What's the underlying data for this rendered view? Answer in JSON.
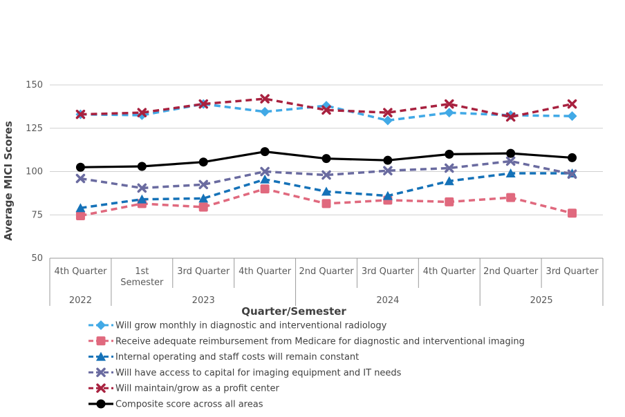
{
  "chart_data": {
    "type": "line",
    "title": "",
    "xlabel": "Quarter/Semester",
    "ylabel": "Average MICI Scores",
    "ylim": [
      50,
      150
    ],
    "yticks": [
      50,
      75,
      100,
      125,
      150
    ],
    "grid": true,
    "legend_position": "bottom",
    "categories": [
      "4th Quarter",
      "1st Semester",
      "3rd Quarter",
      "4th Quarter",
      "2nd Quarter",
      "3rd Quarter",
      "4th Quarter",
      "2nd Quarter",
      "3rd Quarter"
    ],
    "category_lines": [
      [
        "4th Quarter"
      ],
      [
        "1st",
        "Semester"
      ],
      [
        "3rd Quarter"
      ],
      [
        "4th Quarter"
      ],
      [
        "2nd Quarter"
      ],
      [
        "3rd Quarter"
      ],
      [
        "4th Quarter"
      ],
      [
        "2nd Quarter"
      ],
      [
        "3rd Quarter"
      ]
    ],
    "year_groups": [
      {
        "label": "2022",
        "start": 0,
        "end": 0
      },
      {
        "label": "2023",
        "start": 1,
        "end": 3
      },
      {
        "label": "2024",
        "start": 4,
        "end": 6
      },
      {
        "label": "2025",
        "start": 7,
        "end": 8
      }
    ],
    "series": [
      {
        "name": "Will grow monthly in diagnostic and interventional radiology",
        "color": "#41A9E6",
        "marker": "diamond",
        "dash": true,
        "values": [
          133,
          132.5,
          139,
          134.5,
          138,
          129.5,
          134,
          132.5,
          132
        ]
      },
      {
        "name": "Receive adequate reimbursement from Medicare for diagnostic and interventional imaging",
        "color": "#E0697E",
        "marker": "square",
        "dash": true,
        "values": [
          74.5,
          81.5,
          79.5,
          90,
          81.5,
          83.5,
          82.5,
          85,
          76
        ]
      },
      {
        "name": "Internal operating and staff costs will remain constant",
        "color": "#1572B8",
        "marker": "triangle",
        "dash": true,
        "values": [
          79,
          84,
          84.5,
          95.5,
          88.5,
          86,
          94.5,
          99,
          99
        ]
      },
      {
        "name": "Will have access to capital for imaging equipment and IT needs",
        "color": "#6A6BA0",
        "marker": "x",
        "dash": true,
        "values": [
          96,
          90.5,
          92.5,
          100,
          98,
          100.5,
          102,
          106,
          98.5
        ]
      },
      {
        "name": "Will maintain/grow as a profit center",
        "color": "#A8213F",
        "marker": "x",
        "dash": true,
        "values": [
          133,
          134,
          139,
          142,
          135.5,
          134,
          139,
          131.5,
          139
        ]
      },
      {
        "name": "Composite score across all areas",
        "color": "#000000",
        "marker": "circle",
        "dash": false,
        "values": [
          102.5,
          103,
          105.5,
          111.5,
          107.5,
          106.5,
          110,
          110.5,
          108
        ]
      }
    ]
  }
}
